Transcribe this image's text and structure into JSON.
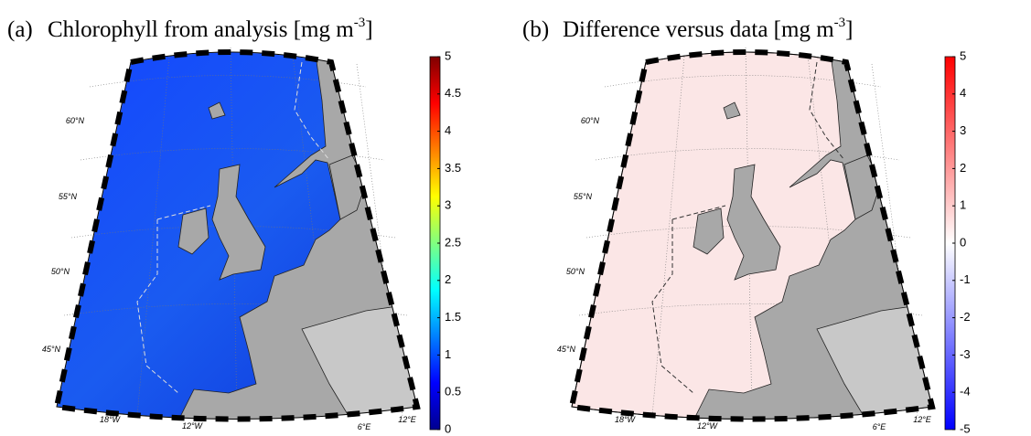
{
  "panels": [
    {
      "label": "(a)",
      "title": "Chlorophyll from analysis [mg m",
      "title_superscript": "-3",
      "title_end": "]",
      "lat_labels": [
        "60°N",
        "55°N",
        "50°N",
        "45°N"
      ],
      "lon_labels": [
        "18°W",
        "12°W",
        "6°E",
        "12°E"
      ],
      "colorbar": {
        "clim": [
          0,
          5
        ],
        "ticks": [
          0,
          0.5,
          1,
          1.5,
          2,
          2.5,
          3,
          3.5,
          4,
          4.5,
          5
        ],
        "colormap": [
          "#00008f",
          "#0000ff",
          "#0080ff",
          "#00ffff",
          "#80ff80",
          "#ffff00",
          "#ff8000",
          "#ff0000",
          "#800000"
        ]
      }
    },
    {
      "label": "(b)",
      "title": "Difference versus data [mg m",
      "title_superscript": "-3",
      "title_end": "]",
      "lat_labels": [
        "60°N",
        "55°N",
        "50°N",
        "45°N"
      ],
      "lon_labels": [
        "18°W",
        "12°W",
        "6°E",
        "12°E"
      ],
      "colorbar": {
        "clim": [
          -5,
          5
        ],
        "ticks": [
          -5,
          -4,
          -3,
          -2,
          -1,
          0,
          1,
          2,
          3,
          4,
          5
        ],
        "colormap": [
          "#0000ff",
          "#ffffff",
          "#ff0000"
        ]
      }
    }
  ]
}
